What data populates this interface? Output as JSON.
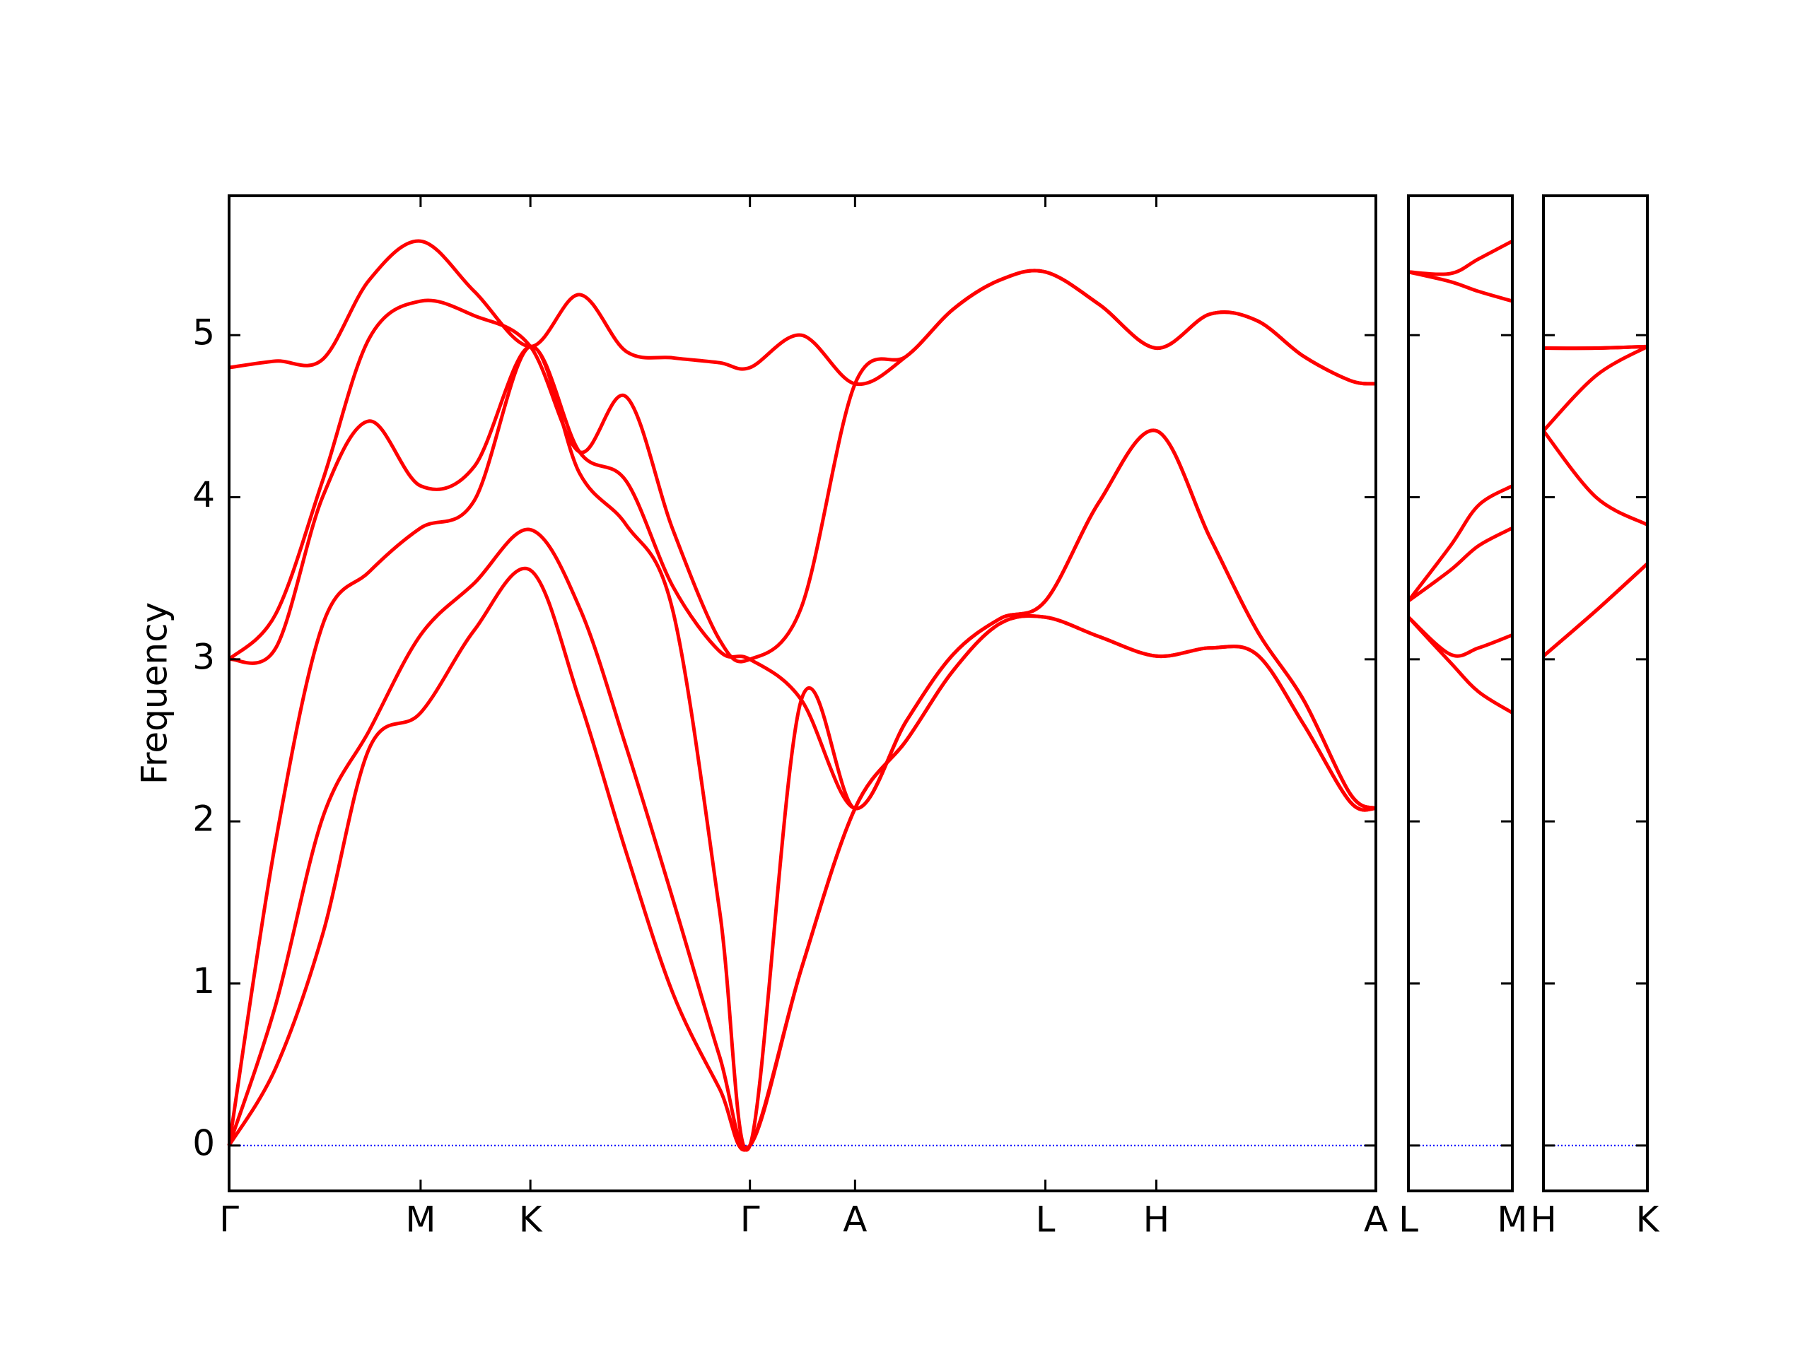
{
  "chart_data": [
    {
      "type": "line",
      "y_label": "Frequency",
      "color": "#ff0000",
      "xlim": [
        0,
        9.82
      ],
      "ylim": [
        -0.28,
        5.86
      ],
      "yticks": [
        0,
        1,
        2,
        3,
        4,
        5
      ],
      "ytick_labels": true,
      "xticks": [
        {
          "value": 0,
          "label": "Γ"
        },
        {
          "value": 1.64,
          "label": "M"
        },
        {
          "value": 2.58,
          "label": "K"
        },
        {
          "value": 4.46,
          "label": "Γ"
        },
        {
          "value": 5.36,
          "label": "A"
        },
        {
          "value": 6.99,
          "label": "L"
        },
        {
          "value": 7.94,
          "label": "H"
        },
        {
          "value": 9.82,
          "label": "A"
        }
      ],
      "hline": 0,
      "hline_color": "#0000ff",
      "x": [
        0,
        0.4,
        0.8,
        1.2,
        1.64,
        2.1,
        2.58,
        3.0,
        3.4,
        3.8,
        4.2,
        4.46,
        4.9,
        5.36,
        5.8,
        6.2,
        6.6,
        6.99,
        7.45,
        7.94,
        8.4,
        8.8,
        9.2,
        9.6,
        9.82
      ],
      "series": [
        {
          "values": [
            0,
            0.48,
            1.3,
            2.45,
            2.67,
            3.18,
            3.55,
            2.75,
            1.81,
            0.94,
            0.35,
            0,
            1.09,
            2.08,
            2.5,
            2.93,
            3.22,
            3.26,
            3.14,
            3.02,
            3.07,
            3.03,
            2.6,
            2.12,
            2.08
          ]
        },
        {
          "values": [
            0,
            0.87,
            2.02,
            2.56,
            3.15,
            3.47,
            3.8,
            3.32,
            2.46,
            1.52,
            0.55,
            0,
            1.09,
            2.08,
            2.5,
            2.93,
            3.22,
            3.26,
            3.14,
            3.02,
            3.07,
            3.03,
            2.6,
            2.12,
            2.08
          ]
        },
        {
          "values": [
            0,
            1.88,
            3.21,
            3.54,
            3.81,
            3.98,
            4.93,
            4.15,
            3.83,
            3.3,
            1.45,
            0,
            2.75,
            2.08,
            2.62,
            3.03,
            3.25,
            3.36,
            3.97,
            4.41,
            3.75,
            3.18,
            2.75,
            2.17,
            2.08
          ]
        },
        {
          "values": [
            3.0,
            3.07,
            4.0,
            4.47,
            4.07,
            4.19,
            4.93,
            4.28,
            4.1,
            3.45,
            3.05,
            3.0,
            2.75,
            2.08,
            2.62,
            3.03,
            3.25,
            3.36,
            3.97,
            4.41,
            3.75,
            3.18,
            2.75,
            2.17,
            2.08
          ]
        },
        {
          "values": [
            3.0,
            3.28,
            4.1,
            4.98,
            5.21,
            5.12,
            4.93,
            4.28,
            4.62,
            3.8,
            3.12,
            3.0,
            3.32,
            4.7,
            4.87,
            5.16,
            5.34,
            5.39,
            5.19,
            4.92,
            5.13,
            5.09,
            4.87,
            4.72,
            4.7
          ]
        },
        {
          "values": [
            4.8,
            4.84,
            4.85,
            5.34,
            5.58,
            5.27,
            4.93,
            5.25,
            4.9,
            4.86,
            4.83,
            4.8,
            5.0,
            4.7,
            4.87,
            5.16,
            5.34,
            5.39,
            5.19,
            4.92,
            5.13,
            5.09,
            4.87,
            4.72,
            4.7
          ]
        }
      ]
    },
    {
      "type": "line",
      "color": "#ff0000",
      "xlim": [
        0,
        0.89
      ],
      "ylim": [
        -0.28,
        5.86
      ],
      "yticks": [
        0,
        1,
        2,
        3,
        4,
        5
      ],
      "ytick_labels": false,
      "xticks": [
        {
          "value": 0,
          "label": "L"
        },
        {
          "value": 0.89,
          "label": "M"
        }
      ],
      "hline": 0,
      "hline_color": "#0000ff",
      "x": [
        0,
        0.36,
        0.6,
        0.89
      ],
      "series": [
        {
          "values": [
            3.26,
            2.98,
            2.8,
            2.67
          ]
        },
        {
          "values": [
            3.26,
            3.03,
            3.07,
            3.15
          ]
        },
        {
          "values": [
            3.36,
            3.55,
            3.7,
            3.81
          ]
        },
        {
          "values": [
            3.36,
            3.7,
            3.95,
            4.07
          ]
        },
        {
          "values": [
            5.39,
            5.33,
            5.27,
            5.21
          ]
        },
        {
          "values": [
            5.39,
            5.38,
            5.47,
            5.58
          ]
        }
      ]
    },
    {
      "type": "line",
      "color": "#ff0000",
      "xlim": [
        0,
        0.89
      ],
      "ylim": [
        -0.28,
        5.86
      ],
      "yticks": [
        0,
        1,
        2,
        3,
        4,
        5
      ],
      "ytick_labels": false,
      "xticks": [
        {
          "value": 0,
          "label": "H"
        },
        {
          "value": 0.89,
          "label": "K"
        }
      ],
      "hline": 0,
      "hline_color": "#0000ff",
      "x": [
        0,
        0.45,
        0.89
      ],
      "series": [
        {
          "values": [
            3.02,
            3.3,
            3.59
          ]
        },
        {
          "values": [
            3.02,
            3.3,
            3.59
          ]
        },
        {
          "values": [
            4.41,
            4.0,
            3.83
          ]
        },
        {
          "values": [
            4.41,
            4.75,
            4.93
          ]
        },
        {
          "values": [
            4.92,
            4.92,
            4.93
          ]
        },
        {
          "values": [
            4.92,
            4.92,
            4.93
          ]
        }
      ]
    }
  ]
}
